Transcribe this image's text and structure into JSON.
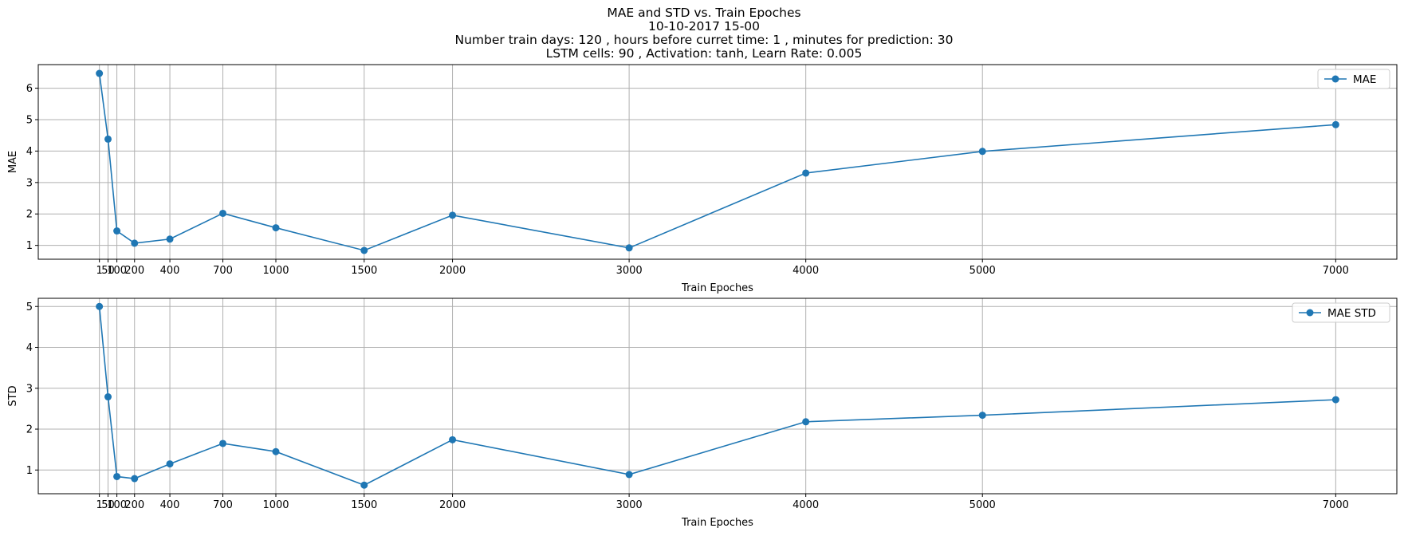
{
  "title_lines": [
    "MAE and STD vs. Train Epoches",
    "10-10-2017 15-00",
    "Number train days: 120 , hours before curret time: 1 , minutes for prediction: 30",
    "LSTM cells: 90 , Activation: tanh, Learn Rate: 0.005"
  ],
  "colors": {
    "series": "#1f77b4",
    "grid": "#b0b0b0",
    "axes": "#000000"
  },
  "chart_data": [
    {
      "type": "line",
      "x": [
        1,
        50,
        100,
        200,
        400,
        700,
        1000,
        1500,
        2000,
        3000,
        4000,
        5000,
        7000
      ],
      "x_tick_labels": [
        "1",
        "50",
        "100",
        "200",
        "400",
        "700",
        "1000",
        "1500",
        "2000",
        "3000",
        "4000",
        "5000",
        "7000"
      ],
      "y_ticks": [
        1,
        2,
        3,
        4,
        5,
        6
      ],
      "series": [
        {
          "name": "MAE",
          "values": [
            6.47,
            4.38,
            1.46,
            1.07,
            1.2,
            2.02,
            1.56,
            0.84,
            1.96,
            0.92,
            3.3,
            3.99,
            4.84
          ]
        }
      ],
      "xlabel": "Train Epoches",
      "ylabel": "MAE",
      "xlim": [
        -345,
        7346
      ],
      "ylim": [
        0.56,
        6.75
      ],
      "grid": true,
      "legend": "upper-right",
      "marker": "circle"
    },
    {
      "type": "line",
      "x": [
        1,
        50,
        100,
        200,
        400,
        700,
        1000,
        1500,
        2000,
        3000,
        4000,
        5000,
        7000
      ],
      "x_tick_labels": [
        "1",
        "50",
        "100",
        "200",
        "400",
        "700",
        "1000",
        "1500",
        "2000",
        "3000",
        "4000",
        "5000",
        "7000"
      ],
      "y_ticks": [
        1,
        2,
        3,
        4,
        5
      ],
      "series": [
        {
          "name": "MAE STD",
          "values": [
            5.0,
            2.79,
            0.84,
            0.79,
            1.15,
            1.65,
            1.45,
            0.63,
            1.74,
            0.89,
            2.18,
            2.34,
            2.72
          ]
        }
      ],
      "xlabel": "Train Epoches",
      "ylabel": "STD",
      "xlim": [
        -345,
        7346
      ],
      "ylim": [
        0.42,
        5.2
      ],
      "grid": true,
      "legend": "upper-right",
      "marker": "circle"
    }
  ]
}
